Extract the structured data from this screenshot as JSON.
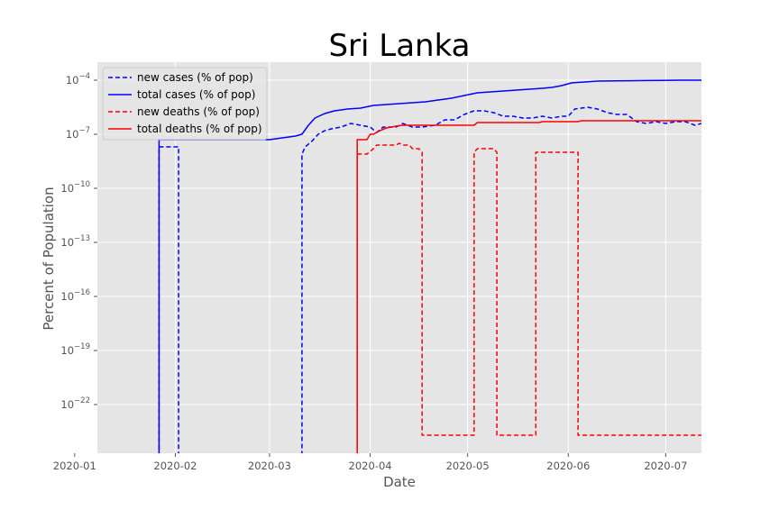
{
  "chart_data": {
    "type": "line",
    "title": "Sri Lanka",
    "xlabel": "Date",
    "ylabel": "Percent of Population",
    "yscale": "log",
    "ylim_exponent": [
      -24.7,
      -3.0
    ],
    "xlim": [
      "2020-01-08",
      "2020-07-12"
    ],
    "x_ticks": [
      "2020-01",
      "2020-02",
      "2020-03",
      "2020-04",
      "2020-05",
      "2020-06",
      "2020-07"
    ],
    "x_tick_dates": [
      "2020-01-01",
      "2020-02-01",
      "2020-03-01",
      "2020-04-01",
      "2020-05-01",
      "2020-06-01",
      "2020-07-01"
    ],
    "y_tick_exponents": [
      -4,
      -7,
      -10,
      -13,
      -16,
      -19,
      -22
    ],
    "grid": true,
    "legend_position": "top-left",
    "series": [
      {
        "name": "new cases (% of pop)",
        "color": "#0000ff",
        "style": "dashed",
        "points": [
          [
            "2020-01-27",
            -30
          ],
          [
            "2020-01-27",
            -7.7
          ],
          [
            "2020-01-28",
            -7.7
          ],
          [
            "2020-02-02",
            -7.7
          ],
          [
            "2020-02-02",
            -30
          ],
          [
            "2020-03-11",
            -30
          ],
          [
            "2020-03-11",
            -8.1
          ],
          [
            "2020-03-12",
            -7.7
          ],
          [
            "2020-03-14",
            -7.4
          ],
          [
            "2020-03-16",
            -7.0
          ],
          [
            "2020-03-18",
            -6.8
          ],
          [
            "2020-03-20",
            -6.7
          ],
          [
            "2020-03-23",
            -6.6
          ],
          [
            "2020-03-26",
            -6.4
          ],
          [
            "2020-03-29",
            -6.5
          ],
          [
            "2020-04-01",
            -6.6
          ],
          [
            "2020-04-03",
            -6.9
          ],
          [
            "2020-04-05",
            -6.6
          ],
          [
            "2020-04-09",
            -6.6
          ],
          [
            "2020-04-11",
            -6.4
          ],
          [
            "2020-04-14",
            -6.6
          ],
          [
            "2020-04-17",
            -6.6
          ],
          [
            "2020-04-21",
            -6.5
          ],
          [
            "2020-04-24",
            -6.2
          ],
          [
            "2020-04-27",
            -6.2
          ],
          [
            "2020-04-30",
            -5.9
          ],
          [
            "2020-05-03",
            -5.7
          ],
          [
            "2020-05-06",
            -5.7
          ],
          [
            "2020-05-09",
            -5.8
          ],
          [
            "2020-05-12",
            -6.0
          ],
          [
            "2020-05-15",
            -6.0
          ],
          [
            "2020-05-18",
            -6.1
          ],
          [
            "2020-05-21",
            -6.1
          ],
          [
            "2020-05-24",
            -6.0
          ],
          [
            "2020-05-27",
            -6.1
          ],
          [
            "2020-05-30",
            -6.0
          ],
          [
            "2020-06-01",
            -6.0
          ],
          [
            "2020-06-03",
            -5.6
          ],
          [
            "2020-06-07",
            -5.5
          ],
          [
            "2020-06-10",
            -5.6
          ],
          [
            "2020-06-13",
            -5.8
          ],
          [
            "2020-06-16",
            -5.9
          ],
          [
            "2020-06-19",
            -5.9
          ],
          [
            "2020-06-22",
            -6.3
          ],
          [
            "2020-06-25",
            -6.4
          ],
          [
            "2020-06-28",
            -6.3
          ],
          [
            "2020-07-01",
            -6.4
          ],
          [
            "2020-07-04",
            -6.3
          ],
          [
            "2020-07-07",
            -6.3
          ],
          [
            "2020-07-10",
            -6.5
          ],
          [
            "2020-07-12",
            -6.4
          ]
        ]
      },
      {
        "name": "total cases (% of pop)",
        "color": "#0000ff",
        "style": "solid",
        "points": [
          [
            "2020-01-27",
            -30
          ],
          [
            "2020-01-27",
            -7.3
          ],
          [
            "2020-03-01",
            -7.3
          ],
          [
            "2020-03-05",
            -7.2
          ],
          [
            "2020-03-09",
            -7.1
          ],
          [
            "2020-03-11",
            -7.0
          ],
          [
            "2020-03-13",
            -6.5
          ],
          [
            "2020-03-15",
            -6.1
          ],
          [
            "2020-03-18",
            -5.85
          ],
          [
            "2020-03-21",
            -5.7
          ],
          [
            "2020-03-25",
            -5.6
          ],
          [
            "2020-03-29",
            -5.55
          ],
          [
            "2020-04-02",
            -5.4
          ],
          [
            "2020-04-06",
            -5.35
          ],
          [
            "2020-04-10",
            -5.3
          ],
          [
            "2020-04-14",
            -5.25
          ],
          [
            "2020-04-18",
            -5.2
          ],
          [
            "2020-04-22",
            -5.1
          ],
          [
            "2020-04-26",
            -5.0
          ],
          [
            "2020-04-30",
            -4.85
          ],
          [
            "2020-05-04",
            -4.7
          ],
          [
            "2020-05-08",
            -4.65
          ],
          [
            "2020-05-12",
            -4.6
          ],
          [
            "2020-05-16",
            -4.55
          ],
          [
            "2020-05-20",
            -4.5
          ],
          [
            "2020-05-24",
            -4.45
          ],
          [
            "2020-05-27",
            -4.4
          ],
          [
            "2020-05-30",
            -4.3
          ],
          [
            "2020-06-02",
            -4.15
          ],
          [
            "2020-06-06",
            -4.1
          ],
          [
            "2020-06-10",
            -4.05
          ],
          [
            "2020-06-15",
            -4.04
          ],
          [
            "2020-06-20",
            -4.03
          ],
          [
            "2020-06-25",
            -4.02
          ],
          [
            "2020-06-30",
            -4.01
          ],
          [
            "2020-07-05",
            -4.0
          ],
          [
            "2020-07-12",
            -4.0
          ]
        ]
      },
      {
        "name": "new deaths (% of pop)",
        "color": "#ff0000",
        "style": "dashed",
        "points": [
          [
            "2020-03-28",
            -30
          ],
          [
            "2020-03-28",
            -8.1
          ],
          [
            "2020-03-31",
            -8.1
          ],
          [
            "2020-04-02",
            -7.8
          ],
          [
            "2020-04-03",
            -7.6
          ],
          [
            "2020-04-06",
            -7.6
          ],
          [
            "2020-04-09",
            -7.6
          ],
          [
            "2020-04-10",
            -7.5
          ],
          [
            "2020-04-11",
            -7.6
          ],
          [
            "2020-04-13",
            -7.6
          ],
          [
            "2020-04-14",
            -7.8
          ],
          [
            "2020-04-16",
            -7.8
          ],
          [
            "2020-04-17",
            -8.0
          ],
          [
            "2020-04-17",
            -23.7
          ],
          [
            "2020-05-03",
            -23.7
          ],
          [
            "2020-05-03",
            -8.0
          ],
          [
            "2020-05-04",
            -7.8
          ],
          [
            "2020-05-09",
            -7.8
          ],
          [
            "2020-05-10",
            -8.0
          ],
          [
            "2020-05-10",
            -23.7
          ],
          [
            "2020-05-22",
            -23.7
          ],
          [
            "2020-05-22",
            -8.0
          ],
          [
            "2020-05-23",
            -8.0
          ],
          [
            "2020-06-04",
            -8.0
          ],
          [
            "2020-06-04",
            -23.7
          ],
          [
            "2020-07-12",
            -23.7
          ]
        ]
      },
      {
        "name": "total deaths (% of pop)",
        "color": "#ff0000",
        "style": "solid",
        "points": [
          [
            "2020-03-28",
            -30
          ],
          [
            "2020-03-28",
            -7.3
          ],
          [
            "2020-03-31",
            -7.3
          ],
          [
            "2020-04-01",
            -7.0
          ],
          [
            "2020-04-02",
            -7.0
          ],
          [
            "2020-04-04",
            -6.8
          ],
          [
            "2020-04-06",
            -6.65
          ],
          [
            "2020-04-09",
            -6.55
          ],
          [
            "2020-04-11",
            -6.5
          ],
          [
            "2020-04-17",
            -6.5
          ],
          [
            "2020-05-03",
            -6.5
          ],
          [
            "2020-05-04",
            -6.35
          ],
          [
            "2020-05-09",
            -6.35
          ],
          [
            "2020-05-23",
            -6.35
          ],
          [
            "2020-05-24",
            -6.3
          ],
          [
            "2020-06-04",
            -6.3
          ],
          [
            "2020-06-05",
            -6.25
          ],
          [
            "2020-07-12",
            -6.25
          ]
        ]
      }
    ]
  }
}
